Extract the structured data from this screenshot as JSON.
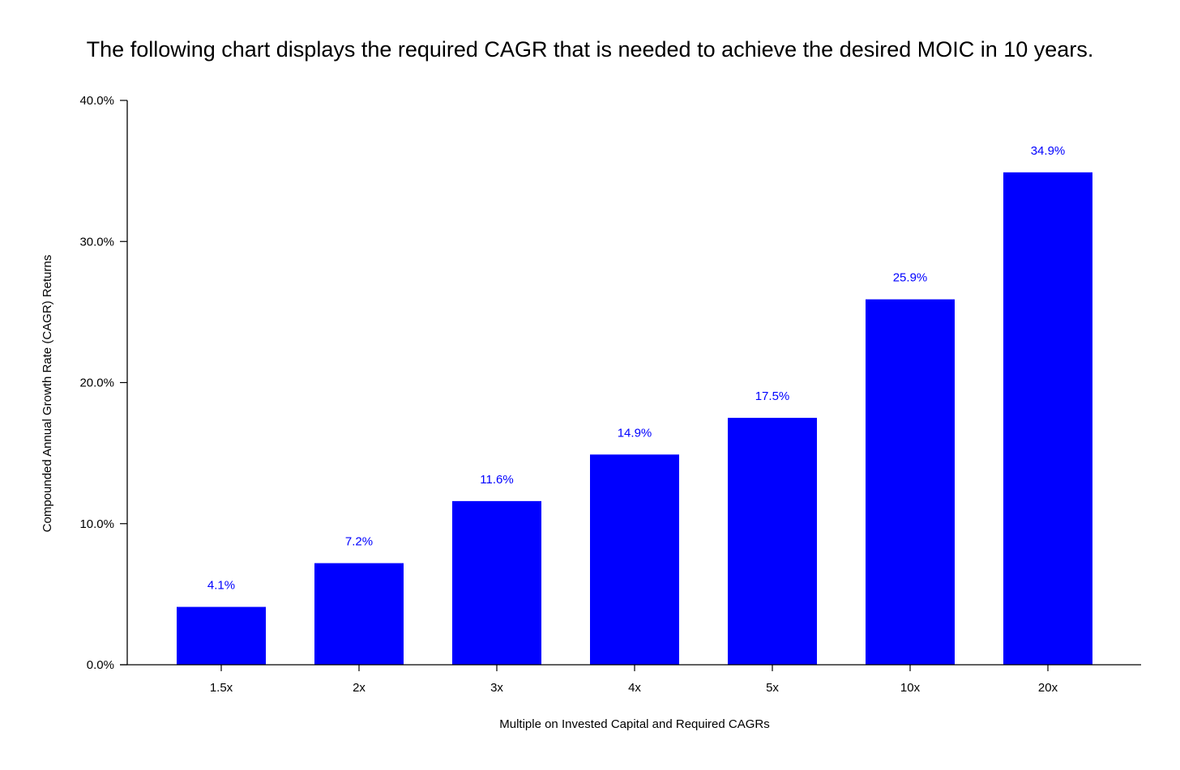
{
  "chart_data": {
    "type": "bar",
    "title": "The following chart displays the required CAGR that is needed to achieve the desired MOIC in 10 years.",
    "xlabel": "Multiple on Invested Capital and Required CAGRs",
    "ylabel": "Compounded Annual Growth Rate (CAGR) Returns",
    "categories": [
      "1.5x",
      "2x",
      "3x",
      "4x",
      "5x",
      "10x",
      "20x"
    ],
    "values": [
      4.1,
      7.2,
      11.6,
      14.9,
      17.5,
      25.9,
      34.9
    ],
    "data_labels": [
      "4.1%",
      "7.2%",
      "11.6%",
      "14.9%",
      "17.5%",
      "25.9%",
      "34.9%"
    ],
    "ylim": [
      0,
      40
    ],
    "yticks": [
      0,
      10,
      20,
      30,
      40
    ],
    "ytick_labels": [
      "0.0%",
      "10.0%",
      "20.0%",
      "30.0%",
      "40.0%"
    ],
    "grid": false,
    "legend": "none",
    "colors": {
      "bar": "#0000ff",
      "data_label": "#0000ff",
      "axis": "#000000"
    }
  }
}
